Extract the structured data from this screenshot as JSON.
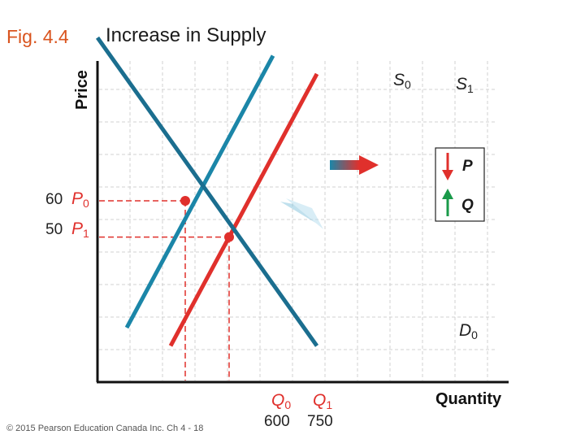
{
  "header": {
    "figure_number": "Fig. 4.4",
    "title": "Increase in Supply"
  },
  "footer": {
    "copyright": "© 2015 Pearson Education Canada Inc. Ch 4 - 18"
  },
  "colors": {
    "supply_initial": "#1b86a8",
    "supply_new": "#e0302c",
    "demand": "#1b6e8f",
    "guide": "#e0302c",
    "axis": "#111111",
    "grid": "#d0d0d0",
    "price_down_arrow": "#e0302c",
    "quantity_up_arrow": "#1a9a4a"
  },
  "legend_box": {
    "price_label": "P",
    "quantity_label": "Q",
    "price_icon": "arrow-down-icon",
    "quantity_icon": "arrow-up-icon"
  },
  "chart_data": {
    "type": "line",
    "xlabel": "Quantity",
    "ylabel": "Price",
    "grid": true,
    "series": [
      {
        "name": "S0",
        "sub": "0",
        "main": "S",
        "points": [
          [
            400,
            25
          ],
          [
            900,
            100
          ]
        ]
      },
      {
        "name": "S1",
        "sub": "1",
        "main": "S",
        "points": [
          [
            550,
            20
          ],
          [
            1050,
            95
          ]
        ]
      },
      {
        "name": "D0",
        "sub": "0",
        "main": "D",
        "points": [
          [
            300,
            105
          ],
          [
            1050,
            20
          ]
        ]
      }
    ],
    "equilibria": [
      {
        "price": 60,
        "quantity": 600,
        "price_label": "P",
        "price_sub": "0",
        "qty_label": "Q",
        "qty_sub": "0"
      },
      {
        "price": 50,
        "quantity": 750,
        "price_label": "P",
        "price_sub": "1",
        "qty_label": "Q",
        "qty_sub": "1"
      }
    ],
    "shift": "rightward supply shift"
  }
}
